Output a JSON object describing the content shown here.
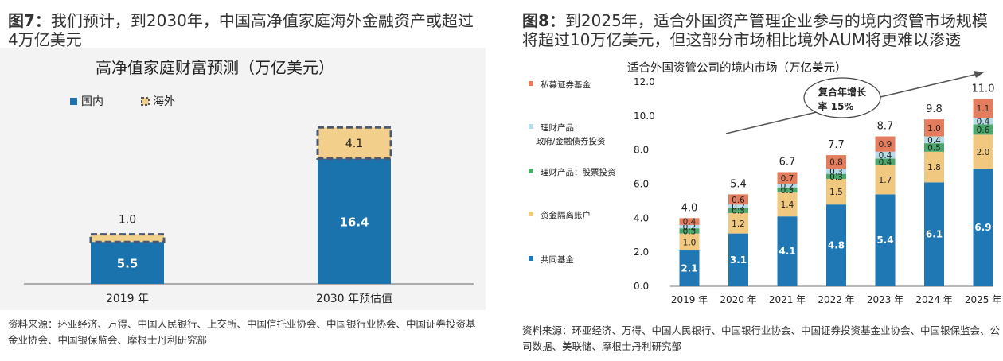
{
  "figure7": {
    "label": "图7：",
    "title_text": "我们预计，到2030年，中国高净值家庭海外金融资产或超过4万亿美元",
    "source": "资料来源：环亚经济、万得、中国人民银行、上交所、中国信托业协会、中国银行业协会、中国证券投资基金业协会、中国银保监会、摩根士丹利研究部",
    "chart_data": {
      "type": "bar",
      "stacked": true,
      "title": "高净值家庭财富预测（万亿美元）",
      "categories": [
        "2019 年",
        "2030 年预估值"
      ],
      "series": [
        {
          "name": "国内",
          "values": [
            5.5,
            16.4
          ],
          "color": "#1a73ad"
        },
        {
          "name": "海外",
          "values": [
            1.0,
            4.1
          ],
          "color": "#f2d08c"
        }
      ],
      "ylim": [
        0,
        22.5
      ],
      "legend": "top-left",
      "grid": false
    }
  },
  "figure8": {
    "label": "图8：",
    "title_text": "到2025年，适合外国资产管理企业参与的境内资管市场规模将超过10万亿美元，但这部分市场相比境外AUM将更难以渗透",
    "source": "资料来源：环亚经济、万得、中国人民银行、中国银行业协会、中国证券投资基金业协会、中国银保监会、公司数据、美联储、摩根士丹利研究部",
    "chart_data": {
      "type": "bar",
      "stacked": true,
      "title": "适合外国资管公司的境内市场（万亿美元）",
      "categories": [
        "2019 年",
        "2020 年",
        "2021 年",
        "2022 年",
        "2023 年",
        "2024 年",
        "2025 年"
      ],
      "series": [
        {
          "name": "共同基金",
          "values": [
            2.1,
            3.1,
            4.1,
            4.8,
            5.4,
            6.1,
            6.9
          ],
          "color": "#1f77b4"
        },
        {
          "name": "资金隔离账户",
          "values": [
            1.0,
            1.2,
            1.4,
            1.5,
            1.7,
            1.8,
            2.0
          ],
          "color": "#f1c87f"
        },
        {
          "name": "理财产品：股票投资",
          "values": [
            0.3,
            0.3,
            0.3,
            0.3,
            0.4,
            0.5,
            0.6
          ],
          "color": "#4aa86b"
        },
        {
          "name": "理财产品：\n政府/金融债券投资",
          "values": [
            0.2,
            0.2,
            0.2,
            0.3,
            0.4,
            0.4,
            0.4
          ],
          "color": "#b7dce9"
        },
        {
          "name": "私募证券基金",
          "values": [
            0.4,
            0.6,
            0.7,
            0.8,
            0.9,
            1.0,
            1.1
          ],
          "color": "#e47c5e"
        }
      ],
      "totals": [
        "4.0",
        "5.4",
        "6.7",
        "7.7",
        "8.7",
        "9.8",
        "11.0"
      ],
      "yticks": [
        "0.0",
        "2.0",
        "4.0",
        "6.0",
        "8.0",
        "10.0",
        "12.0"
      ],
      "ylim": [
        0,
        12
      ],
      "annotation": "复合年增长\n率 15%",
      "legend": "left",
      "grid": false
    }
  }
}
